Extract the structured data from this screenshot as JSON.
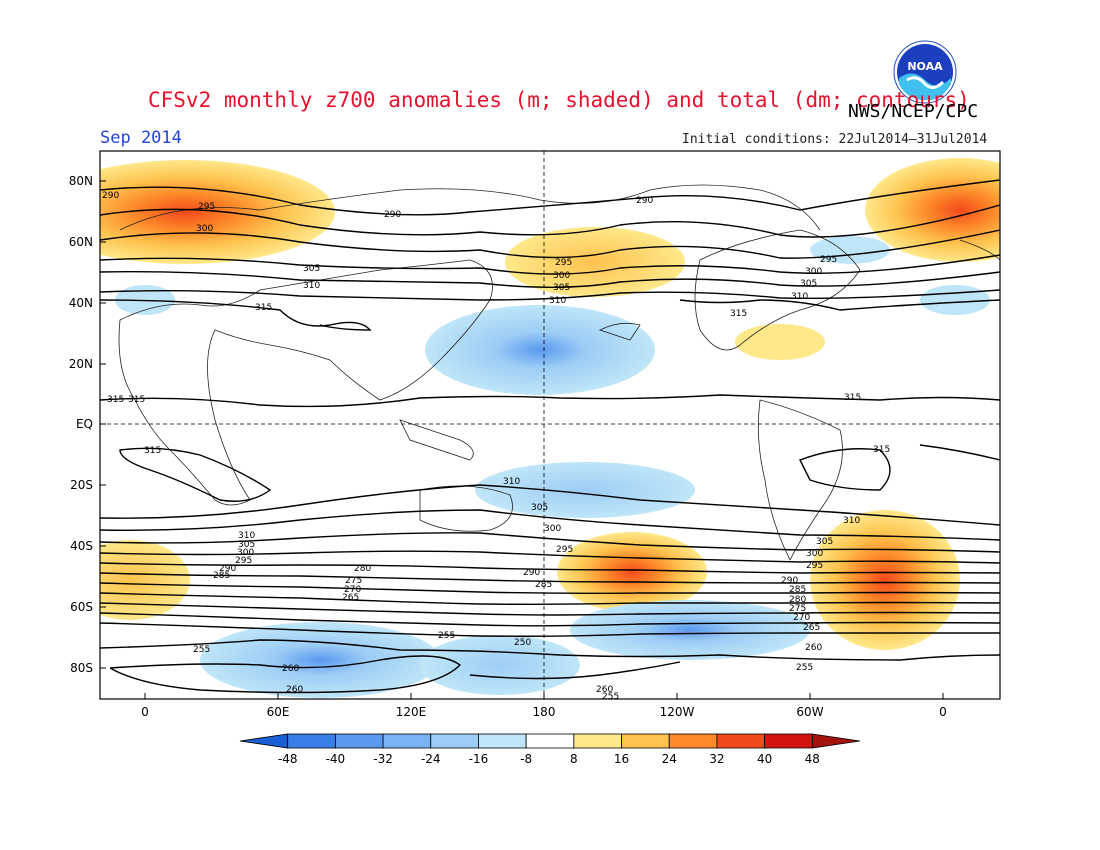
{
  "header": {
    "title": "CFSv2 monthly z700 anomalies (m; shaded) and total (dm; contours)",
    "agency": "NWS/NCEP/CPC",
    "period": "Sep 2014",
    "initial_conditions": "Initial conditions: 22Jul2014–31Jul2014",
    "logo_text": "NOAA"
  },
  "map": {
    "lat_labels": [
      "80N",
      "60N",
      "40N",
      "20N",
      "EQ",
      "20S",
      "40S",
      "60S",
      "80S"
    ],
    "lon_labels": [
      "0",
      "60E",
      "120E",
      "180",
      "120W",
      "60W",
      "0"
    ],
    "contour_labels": [
      "290",
      "295",
      "300",
      "305",
      "310",
      "315",
      "290",
      "295",
      "300",
      "305",
      "310",
      "315",
      "290",
      "295",
      "300",
      "305",
      "310",
      "315",
      "315",
      "315",
      "315",
      "315",
      "310",
      "305",
      "300",
      "295",
      "290",
      "285",
      "310",
      "305",
      "300",
      "295",
      "290",
      "285",
      "280",
      "275",
      "270",
      "265",
      "260",
      "255",
      "250",
      "255",
      "260",
      "255",
      "260",
      "310",
      "305",
      "300",
      "295",
      "290",
      "285",
      "280",
      "275",
      "270",
      "265",
      "260",
      "255"
    ]
  },
  "colorbar": {
    "labels": [
      "-48",
      "-40",
      "-32",
      "-24",
      "-16",
      "-8",
      "8",
      "16",
      "24",
      "32",
      "40",
      "48"
    ],
    "colors": [
      "#1a5fd6",
      "#3a7fe8",
      "#5a99ee",
      "#7ab3f3",
      "#9dcdf6",
      "#bfe6f8",
      "#ffffff",
      "#ffe88a",
      "#fec24d",
      "#fd8a2a",
      "#f24a1a",
      "#d2160f",
      "#a3120c"
    ]
  },
  "colors": {
    "title": "#e8112d",
    "period": "#2244dd",
    "positive_strong": "#f24a1a",
    "negative_strong": "#3a7fe8"
  }
}
